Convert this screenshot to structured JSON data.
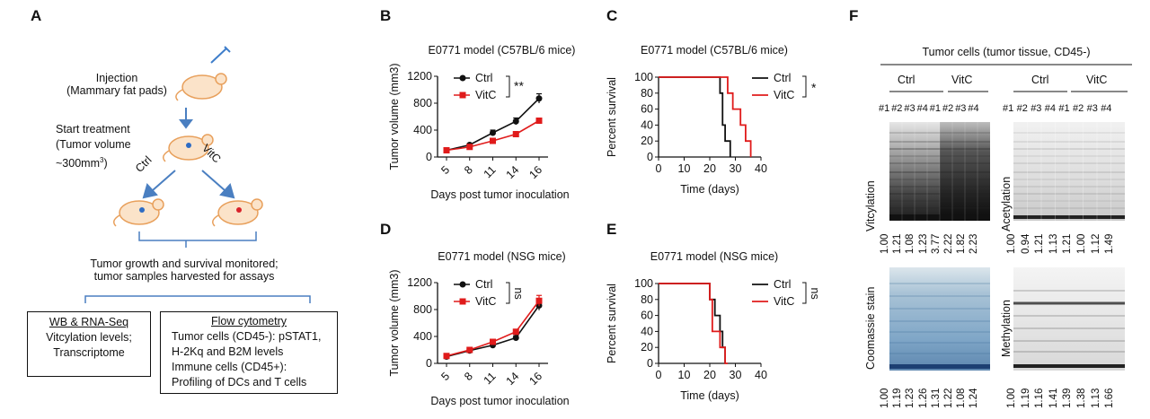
{
  "panel_labels": {
    "a": "A",
    "b": "B",
    "c": "C",
    "d": "D",
    "e": "E",
    "f": "F"
  },
  "schematic": {
    "injection": [
      "Injection",
      "(Mammary fat pads)"
    ],
    "start": [
      "Start treatment",
      "(Tumor volume",
      "~300mm",
      "3",
      ")"
    ],
    "ctrl": "Ctrl",
    "vitc": "VitC",
    "monitor": [
      "Tumor growth and survival monitored;",
      "tumor samples harvested for assays"
    ],
    "box1_title": "WB & RNA-Seq",
    "box1_lines": [
      "Vitcylation levels;",
      "Transcriptome"
    ],
    "box2_title": "Flow cytometry",
    "box2_lines": [
      "Tumor cells (CD45-): pSTAT1,",
      "H-2Kq and B2M levels",
      "Immune cells (CD45+):",
      "Profiling of DCs and T cells"
    ]
  },
  "charts_text": {
    "B": {
      "title": "E0771 model (C57BL/6 mice)",
      "xlabel": "Days post tumor inoculation",
      "ylabel": "Tumor volume (mm",
      "ylabel_sup": "3",
      ")": ")",
      "sig": "**"
    },
    "C": {
      "title": "E0771 model (C57BL/6 mice)",
      "xlabel": "Time (days)",
      "ylabel": "Percent survival",
      "sig": "*"
    },
    "D": {
      "title": "E0771 model (NSG mice)",
      "xlabel": "Days post tumor inoculation",
      "ylabel": "Tumor volume (mm",
      "ylabel_sup": "3",
      "sig": "ns"
    },
    "E": {
      "title": "E0771 model (NSG mice)",
      "xlabel": "Time (days)",
      "ylabel": "Percent survival",
      "sig": "ns"
    },
    "legend_ctrl": "Ctrl",
    "legend_vitc": "VitC"
  },
  "colors": {
    "ctrl": "#111111",
    "vitc": "#e01b1b",
    "arrow": "#4a7fc1",
    "bracket": "#4a7fc1"
  },
  "chart_data": [
    {
      "id": "B",
      "type": "line",
      "title": "E0771 model (C57BL/6 mice)",
      "xlabel": "Days post tumor inoculation",
      "ylabel": "Tumor volume (mm3)",
      "x": [
        5,
        8,
        11,
        14,
        16
      ],
      "ylim": [
        0,
        1200
      ],
      "yticks": [
        0,
        400,
        800,
        1200
      ],
      "series": [
        {
          "name": "Ctrl",
          "values": [
            100,
            180,
            360,
            530,
            870
          ],
          "err": [
            15,
            20,
            40,
            50,
            70
          ]
        },
        {
          "name": "VitC",
          "values": [
            100,
            150,
            240,
            340,
            540
          ],
          "err": [
            10,
            15,
            20,
            25,
            30
          ]
        }
      ]
    },
    {
      "id": "C",
      "type": "line",
      "title": "E0771 model (C57BL/6 mice)",
      "xlabel": "Time (days)",
      "ylabel": "Percent survival",
      "xlim": [
        0,
        40
      ],
      "xticks": [
        0,
        10,
        20,
        30,
        40
      ],
      "ylim": [
        0,
        100
      ],
      "yticks": [
        0,
        20,
        40,
        60,
        80,
        100
      ],
      "series": [
        {
          "name": "Ctrl",
          "x": [
            0,
            24,
            24,
            25,
            25,
            26,
            26,
            28,
            28
          ],
          "values": [
            100,
            100,
            80,
            80,
            40,
            40,
            20,
            20,
            0
          ]
        },
        {
          "name": "VitC",
          "x": [
            0,
            27,
            27,
            29,
            29,
            32,
            32,
            34,
            34,
            36,
            36
          ],
          "values": [
            100,
            100,
            80,
            80,
            60,
            60,
            40,
            40,
            20,
            20,
            0
          ]
        }
      ]
    },
    {
      "id": "D",
      "type": "line",
      "title": "E0771 model (NSG mice)",
      "xlabel": "Days post tumor inoculation",
      "ylabel": "Tumor volume (mm3)",
      "x": [
        5,
        8,
        11,
        14,
        16
      ],
      "ylim": [
        0,
        1200
      ],
      "yticks": [
        0,
        400,
        800,
        1200
      ],
      "series": [
        {
          "name": "Ctrl",
          "values": [
            100,
            190,
            270,
            380,
            860
          ],
          "err": [
            10,
            15,
            20,
            30,
            70
          ]
        },
        {
          "name": "VitC",
          "values": [
            110,
            200,
            320,
            470,
            930
          ],
          "err": [
            10,
            15,
            25,
            35,
            80
          ]
        }
      ]
    },
    {
      "id": "E",
      "type": "line",
      "title": "E0771 model (NSG mice)",
      "xlabel": "Time (days)",
      "ylabel": "Percent survival",
      "xlim": [
        0,
        40
      ],
      "xticks": [
        0,
        10,
        20,
        30,
        40
      ],
      "ylim": [
        0,
        100
      ],
      "yticks": [
        0,
        20,
        40,
        60,
        80,
        100
      ],
      "series": [
        {
          "name": "Ctrl",
          "x": [
            0,
            20,
            20,
            22,
            22,
            24,
            24,
            25,
            25,
            26,
            26
          ],
          "values": [
            100,
            100,
            80,
            80,
            60,
            60,
            40,
            40,
            20,
            20,
            0
          ]
        },
        {
          "name": "VitC",
          "x": [
            0,
            20,
            20,
            21,
            21,
            24,
            24,
            26,
            26,
            27,
            27
          ],
          "values": [
            100,
            100,
            80,
            80,
            40,
            40,
            20,
            20,
            0,
            0,
            0
          ]
        }
      ]
    }
  ],
  "blots": {
    "header": "Tumor cells (tumor tissue, CD45-)",
    "ctrl": "Ctrl",
    "vitc": "VitC",
    "lane_labels": [
      "#1",
      "#2",
      "#3",
      "#4",
      "#1",
      "#2",
      "#3",
      "#4"
    ],
    "vitcylation": {
      "label": "Vitcylation",
      "values": [
        "1.00",
        "1.21",
        "1.08",
        "1.23",
        "3.77",
        "2.22",
        "1.82",
        "2.23"
      ]
    },
    "acetylation": {
      "label": "Acetylation",
      "values": [
        "1.00",
        "0.94",
        "1.21",
        "1.13",
        "1.21",
        "1.00",
        "1.12",
        "1.49"
      ]
    },
    "coomassie": {
      "label": "Coomassie stain",
      "values": [
        "1.00",
        "1.19",
        "1.23",
        "1.26",
        "1.31",
        "1.22",
        "1.08",
        "1.24"
      ]
    },
    "methylation": {
      "label": "Methylation",
      "values": [
        "1.00",
        "1.19",
        "1.16",
        "1.41",
        "1.39",
        "1.38",
        "1.13",
        "1.66"
      ]
    }
  }
}
